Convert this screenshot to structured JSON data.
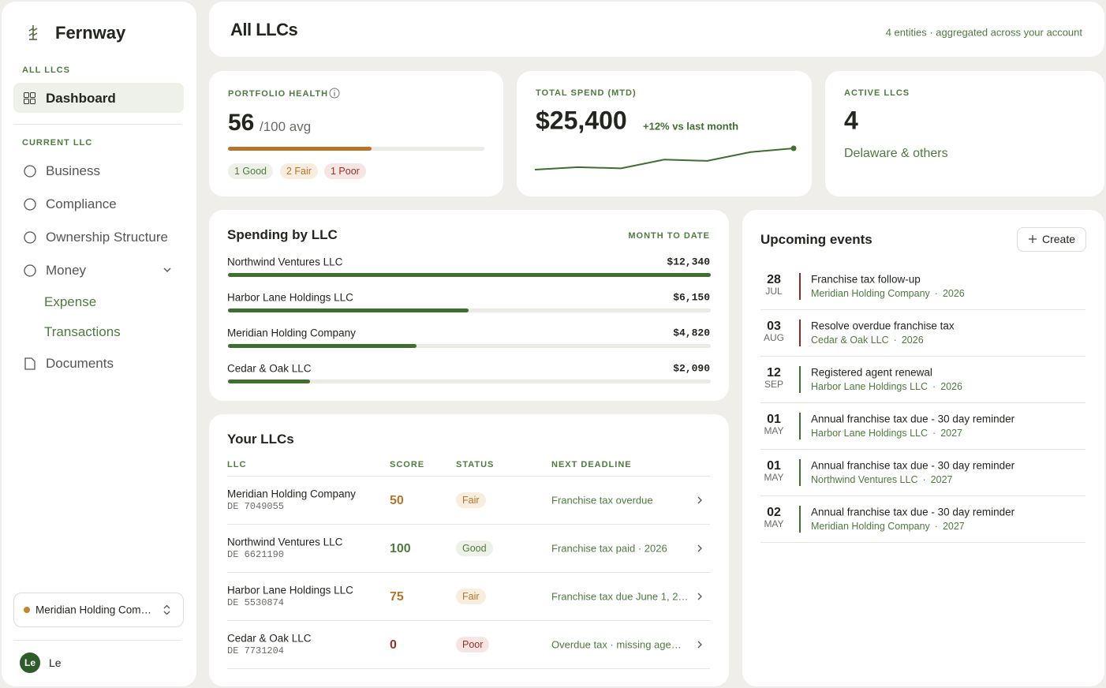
{
  "sidebar": {
    "brand": "Fernway",
    "section_all": "ALL LLCS",
    "dashboard": "Dashboard",
    "section_current": "CURRENT LLC",
    "nav": [
      "Business",
      "Compliance",
      "Ownership Structure",
      "Money"
    ],
    "subnav": [
      "Expense",
      "Transactions"
    ],
    "documents": "Documents",
    "selector": "Meridian Holding Com…",
    "user_initials": "Le",
    "user_name": "Le"
  },
  "header": {
    "title": "All LLCs",
    "subtitle": "4 entities · aggregated across your account"
  },
  "health": {
    "label": "PORTFOLIO HEALTH",
    "score": 56,
    "max": 100,
    "suffix": "/100 avg",
    "pills": [
      "1 Good",
      "2 Fair",
      "1 Poor"
    ]
  },
  "spend": {
    "label": "TOTAL SPEND (MTD)",
    "amount": "$25,400",
    "change": "+12% vs last month",
    "trend": [
      3,
      4,
      3.5,
      7,
      6.5,
      10,
      11.5
    ]
  },
  "active": {
    "label": "ACTIVE LLCS",
    "count": 4,
    "note": "Delaware & others"
  },
  "spending": {
    "title": "Spending by LLC",
    "period": "MONTH TO DATE",
    "rows": [
      {
        "name": "Northwind Ventures LLC",
        "value": 12340,
        "label": "$12,340"
      },
      {
        "name": "Harbor Lane Holdings LLC",
        "value": 6150,
        "label": "$6,150"
      },
      {
        "name": "Meridian Holding Company",
        "value": 4820,
        "label": "$4,820"
      },
      {
        "name": "Cedar & Oak LLC",
        "value": 2090,
        "label": "$2,090"
      }
    ]
  },
  "llcs": {
    "title": "Your LLCs",
    "columns": [
      "LLC",
      "SCORE",
      "STATUS",
      "NEXT DEADLINE"
    ],
    "rows": [
      {
        "name": "Meridian Holding Company",
        "id": "DE 7049055",
        "score": 50,
        "status": "Fair",
        "deadline": "Franchise tax overdue"
      },
      {
        "name": "Northwind Ventures LLC",
        "id": "DE 6621190",
        "score": 100,
        "status": "Good",
        "deadline": "Franchise tax paid · 2026"
      },
      {
        "name": "Harbor Lane Holdings LLC",
        "id": "DE 5530874",
        "score": 75,
        "status": "Fair",
        "deadline": "Franchise tax due June 1, 2…"
      },
      {
        "name": "Cedar & Oak LLC",
        "id": "DE 7731204",
        "score": 0,
        "status": "Poor",
        "deadline": "Overdue tax · missing age…"
      }
    ]
  },
  "events": {
    "title": "Upcoming events",
    "button": "Create",
    "items": [
      {
        "day": "28",
        "month": "JUL",
        "title": "Franchise tax follow-up",
        "entity": "Meridian Holding Company",
        "year": "2026",
        "color": "#8e2a24"
      },
      {
        "day": "03",
        "month": "AUG",
        "title": "Resolve overdue franchise tax",
        "entity": "Cedar & Oak LLC",
        "year": "2026",
        "color": "#8e2a24"
      },
      {
        "day": "12",
        "month": "SEP",
        "title": "Registered agent renewal",
        "entity": "Harbor Lane Holdings LLC",
        "year": "2026",
        "color": "#3f6e30"
      },
      {
        "day": "01",
        "month": "MAY",
        "title": "Annual franchise tax due - 30 day reminder",
        "entity": "Harbor Lane Holdings LLC",
        "year": "2027",
        "color": "#3f6e30"
      },
      {
        "day": "01",
        "month": "MAY",
        "title": "Annual franchise tax due - 30 day reminder",
        "entity": "Northwind Ventures LLC",
        "year": "2027",
        "color": "#3f6e30"
      },
      {
        "day": "02",
        "month": "MAY",
        "title": "Annual franchise tax due - 30 day reminder",
        "entity": "Meridian Holding Company",
        "year": "2027",
        "color": "#3f6e30"
      }
    ]
  }
}
